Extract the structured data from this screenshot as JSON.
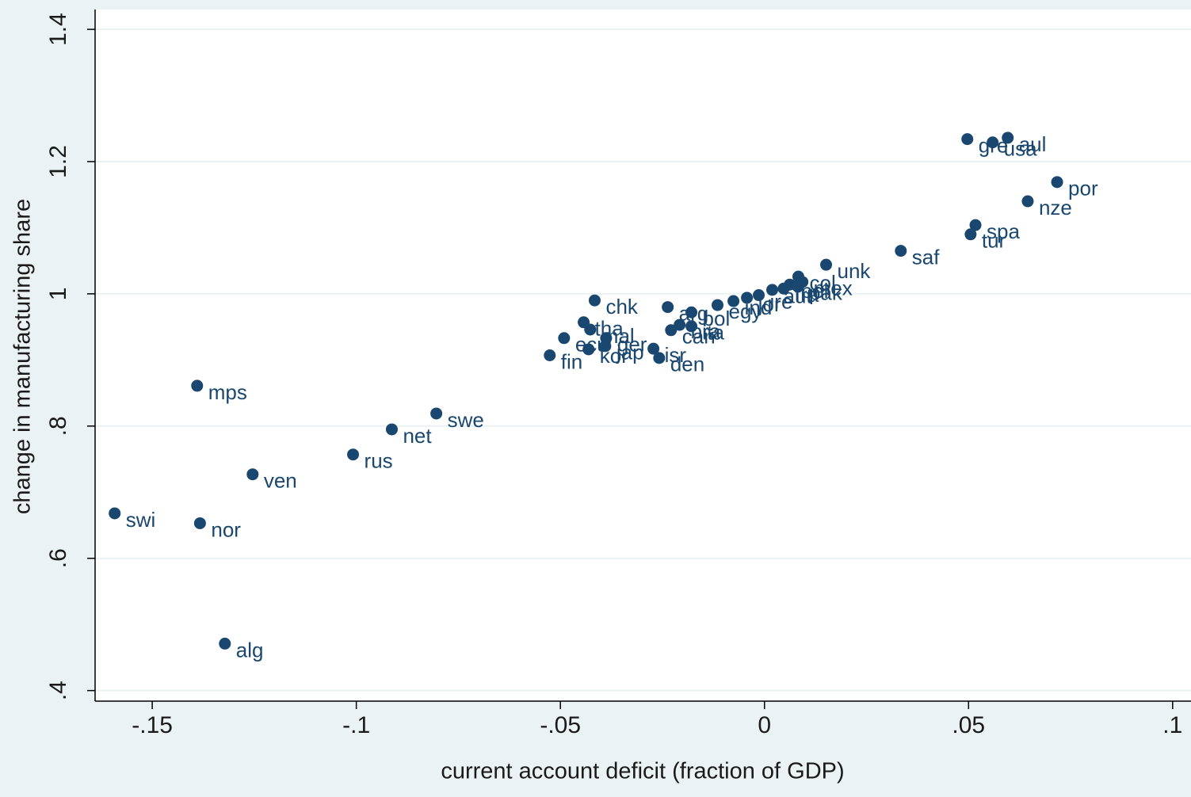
{
  "chart_data": {
    "type": "scatter",
    "xlabel": "current account deficit (fraction of GDP)",
    "ylabel": "change in manufacturing share",
    "color": "#1a476f",
    "grid": true,
    "xlim": [
      -0.164,
      0.1045
    ],
    "ylim": [
      0.384,
      1.43
    ],
    "xticks": [
      {
        "value": -0.15,
        "label": "-.15"
      },
      {
        "value": -0.1,
        "label": "-.1"
      },
      {
        "value": -0.05,
        "label": "-.05"
      },
      0,
      {
        "value": 0.05,
        "label": ".05"
      },
      {
        "value": 0.1,
        "label": ".1"
      }
    ],
    "yticks": [
      {
        "value": 0.4,
        "label": ".4"
      },
      {
        "value": 0.6,
        "label": ".6"
      },
      {
        "value": 0.8,
        "label": ".8"
      },
      1,
      1.2,
      1.4
    ],
    "point_labels": [
      "swi",
      "nor",
      "alg",
      "mps",
      "ven",
      "rus",
      "net",
      "swe",
      "fin",
      "ecu",
      "tha",
      "mal",
      "chk",
      "ger",
      "kor",
      "jap",
      "isr",
      "den",
      "arg",
      "can",
      "bra",
      "ita",
      "bol",
      "egy",
      "ind",
      "jor",
      "ire",
      "aut",
      "fra",
      "bel",
      "col",
      "pak",
      "mex",
      "unk",
      "saf",
      "tur",
      "spa",
      "nze",
      "por",
      "gre",
      "aul",
      "usa"
    ],
    "x": [
      -0.1592,
      -0.1383,
      -0.1322,
      -0.139,
      -0.1254,
      -0.1008,
      -0.0913,
      -0.0804,
      -0.0526,
      -0.0491,
      -0.0443,
      -0.0427,
      -0.0416,
      -0.0388,
      -0.0431,
      -0.039,
      -0.0272,
      -0.0258,
      -0.0237,
      -0.0229,
      -0.0208,
      -0.0179,
      -0.0179,
      -0.0115,
      -0.0076,
      -0.0043,
      -0.0014,
      0.0019,
      0.0047,
      0.0062,
      0.0083,
      0.0082,
      0.0093,
      0.0151,
      0.0334,
      0.0505,
      0.0517,
      0.0645,
      0.0717,
      0.0497,
      0.0596,
      0.0559
    ],
    "values": [
      0.668,
      0.653,
      0.471,
      0.861,
      0.727,
      0.757,
      0.795,
      0.819,
      0.907,
      0.933,
      0.957,
      0.946,
      0.99,
      0.933,
      0.916,
      0.921,
      0.917,
      0.903,
      0.98,
      0.945,
      0.953,
      0.951,
      0.972,
      0.983,
      0.989,
      0.994,
      0.998,
      1.006,
      1.008,
      1.014,
      1.026,
      1.011,
      1.018,
      1.044,
      1.065,
      1.09,
      1.104,
      1.14,
      1.169,
      1.234,
      1.236,
      1.229
    ]
  }
}
